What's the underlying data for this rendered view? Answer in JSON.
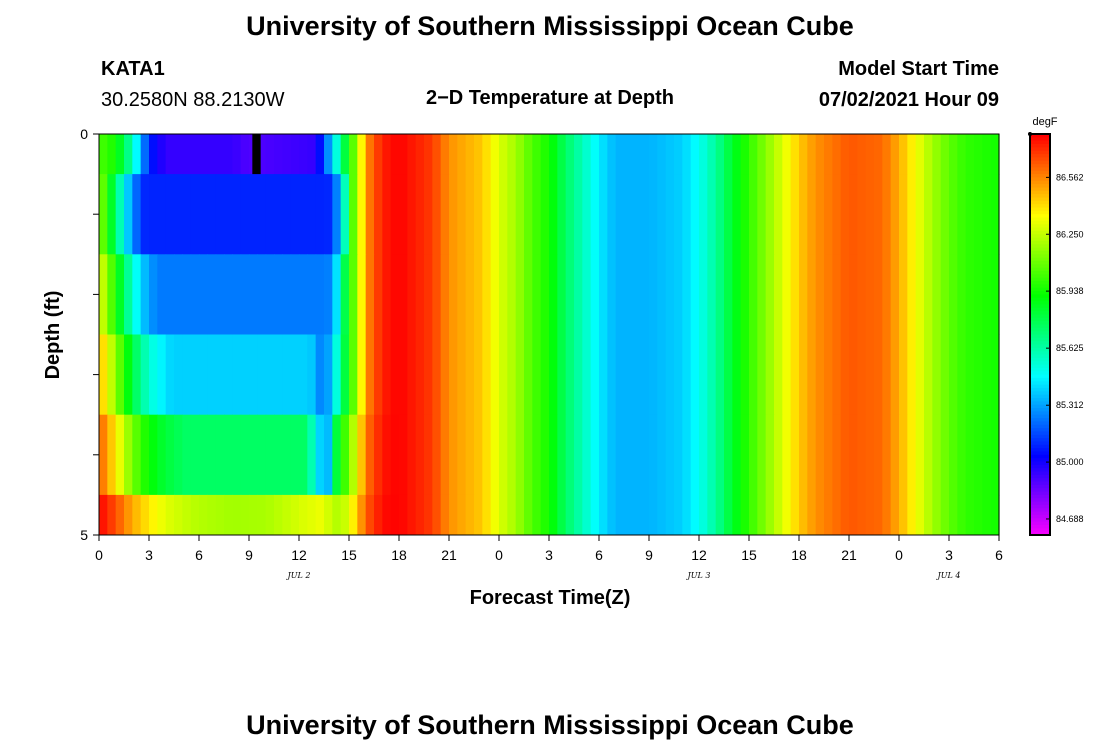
{
  "header": {
    "title_top": "University of Southern Mississippi Ocean Cube",
    "station": "KATA1",
    "coords": "30.2580N  88.2130W",
    "plot_title": "2−D Temperature at Depth",
    "model_label": "Model Start Time",
    "model_time": "07/02/2021 Hour 09",
    "title_bottom": "University of Southern Mississippi Ocean Cube"
  },
  "chart_data": {
    "type": "heatmap",
    "title": "2−D Temperature at Depth",
    "xlabel": "Forecast Time(Z)",
    "ylabel": "Depth (ft)",
    "units": "degF",
    "x_range_hours": [
      0,
      54
    ],
    "depth_range_ft": [
      0,
      5
    ],
    "y_ticks": [
      "0",
      "5"
    ],
    "x_tick_labels": [
      "0",
      "3",
      "6",
      "9",
      "12",
      "15",
      "18",
      "21",
      "0",
      "3",
      "6",
      "9",
      "12",
      "15",
      "18",
      "21",
      "0",
      "3",
      "6"
    ],
    "date_labels": [
      {
        "text": "JUL 2",
        "hour": 12
      },
      {
        "text": "JUL 3",
        "hour": 36
      },
      {
        "text": "JUL 4",
        "hour": 51
      }
    ],
    "colorbar": {
      "label": "degF",
      "min": 84.6,
      "max": 86.8,
      "tick_labels": [
        "86.562",
        "86.250",
        "85.938",
        "85.625",
        "85.312",
        "85.000",
        "84.688"
      ],
      "tick_values": [
        86.562,
        86.25,
        85.938,
        85.625,
        85.312,
        85.0,
        84.688
      ]
    },
    "depth_layers": [
      {
        "top_ft": 0.0,
        "bottom_ft": 0.5
      },
      {
        "top_ft": 0.5,
        "bottom_ft": 1.5
      },
      {
        "top_ft": 1.5,
        "bottom_ft": 2.5
      },
      {
        "top_ft": 2.5,
        "bottom_ft": 3.5
      },
      {
        "top_ft": 3.5,
        "bottom_ft": 4.5
      },
      {
        "top_ft": 4.5,
        "bottom_ft": 5.0
      }
    ],
    "surface_profile": {
      "hours": [
        0,
        1,
        2,
        3,
        4,
        8,
        9,
        13,
        14,
        15,
        15.5,
        16,
        17,
        18,
        20,
        21,
        23,
        24,
        25,
        26,
        27,
        28,
        29,
        30,
        31,
        33,
        35,
        36,
        37,
        38,
        39,
        40,
        41,
        42,
        43,
        45,
        47,
        48,
        49,
        50,
        51,
        52,
        54
      ],
      "temps": [
        86.05,
        85.95,
        85.6,
        85.1,
        84.95,
        84.95,
        84.9,
        84.95,
        85.4,
        85.95,
        86.2,
        86.55,
        86.75,
        86.8,
        86.7,
        86.55,
        86.45,
        86.3,
        86.2,
        86.05,
        85.95,
        85.75,
        85.6,
        85.45,
        85.35,
        85.35,
        85.4,
        85.5,
        85.65,
        85.85,
        86.0,
        86.15,
        86.3,
        86.45,
        86.55,
        86.65,
        86.62,
        86.5,
        86.35,
        86.2,
        86.08,
        86.0,
        85.95
      ]
    },
    "deep_profile": {
      "hours": [
        0,
        1,
        2,
        3,
        4,
        5,
        6,
        8,
        10,
        11,
        12,
        13,
        14,
        15,
        16,
        17,
        18,
        19
      ],
      "temps": [
        86.8,
        86.7,
        86.55,
        86.45,
        86.35,
        86.3,
        86.25,
        86.2,
        86.22,
        86.28,
        86.35,
        86.4,
        86.45,
        86.55,
        86.7,
        86.8,
        86.8,
        86.75
      ]
    },
    "cold_pool_layers": [
      {
        "end_hour": 14.0,
        "inner_temp": 84.95
      },
      {
        "end_hour": 13.7,
        "inner_temp": 85.1
      },
      {
        "end_hour": 13.3,
        "inner_temp": 85.25
      },
      {
        "end_hour": 12.7,
        "inner_temp": 85.4
      },
      {
        "end_hour": 12.5,
        "inner_temp": 85.75
      },
      {
        "end_hour": 13.5,
        "inner_temp": 86.2
      }
    ],
    "missing_cell": {
      "hour_start": 9.2,
      "hour_end": 9.7,
      "depth_top_ft": 0.0,
      "depth_bottom_ft": 0.5
    }
  }
}
